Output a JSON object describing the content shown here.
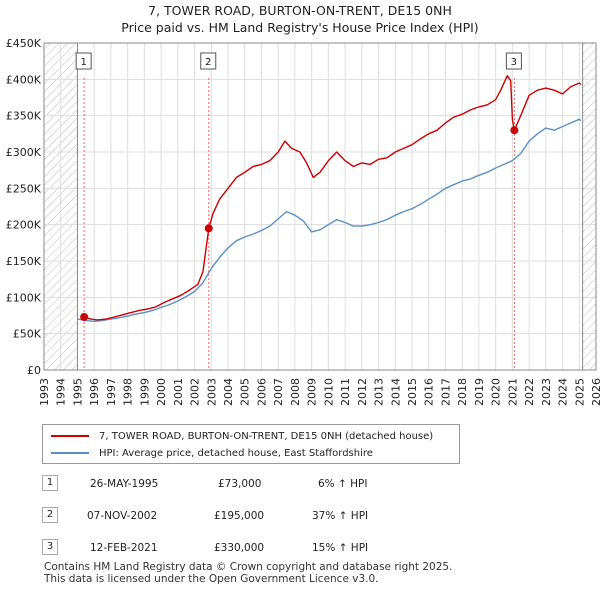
{
  "title": {
    "line1": "7, TOWER ROAD, BURTON-ON-TRENT, DE15 0NH",
    "line2": "Price paid vs. HM Land Registry's House Price Index (HPI)"
  },
  "chart_data": {
    "type": "line",
    "title": "7, TOWER ROAD, BURTON-ON-TRENT, DE15 0NH — Price paid vs. HM Land Registry's House Price Index (HPI)",
    "xlim": [
      1993,
      2026
    ],
    "ylim": [
      0,
      450000
    ],
    "x_ticks": [
      "1993",
      "1994",
      "1995",
      "1996",
      "1997",
      "1998",
      "1999",
      "2000",
      "2001",
      "2002",
      "2003",
      "2004",
      "2005",
      "2006",
      "2007",
      "2008",
      "2009",
      "2010",
      "2011",
      "2012",
      "2013",
      "2014",
      "2015",
      "2016",
      "2017",
      "2018",
      "2019",
      "2020",
      "2021",
      "2022",
      "2023",
      "2024",
      "2025",
      "2026"
    ],
    "y_ticks": [
      {
        "value": 0,
        "label": "£0"
      },
      {
        "value": 50000,
        "label": "£50K"
      },
      {
        "value": 100000,
        "label": "£100K"
      },
      {
        "value": 150000,
        "label": "£150K"
      },
      {
        "value": 200000,
        "label": "£200K"
      },
      {
        "value": 250000,
        "label": "£250K"
      },
      {
        "value": 300000,
        "label": "£300K"
      },
      {
        "value": 350000,
        "label": "£350K"
      },
      {
        "value": 400000,
        "label": "£400K"
      },
      {
        "value": 450000,
        "label": "£450K"
      }
    ],
    "hatched_ranges": [
      [
        1993,
        1995.0
      ],
      [
        2025.2,
        2026
      ]
    ],
    "series": [
      {
        "name": "7, TOWER ROAD, BURTON-ON-TRENT, DE15 0NH (detached house)",
        "color": "#cc0000",
        "points": [
          [
            1995.4,
            73000
          ],
          [
            1995.8,
            70000
          ],
          [
            1996.2,
            69000
          ],
          [
            1996.7,
            70000
          ],
          [
            1997.2,
            73000
          ],
          [
            1997.7,
            76000
          ],
          [
            1998.2,
            79000
          ],
          [
            1998.7,
            82000
          ],
          [
            1999.2,
            84000
          ],
          [
            1999.7,
            87000
          ],
          [
            2000.2,
            93000
          ],
          [
            2000.7,
            98000
          ],
          [
            2001.2,
            103000
          ],
          [
            2001.7,
            110000
          ],
          [
            2002.2,
            118000
          ],
          [
            2002.5,
            135000
          ],
          [
            2002.85,
            195000
          ],
          [
            2003.1,
            215000
          ],
          [
            2003.5,
            235000
          ],
          [
            2004.0,
            250000
          ],
          [
            2004.5,
            265000
          ],
          [
            2005.0,
            272000
          ],
          [
            2005.5,
            280000
          ],
          [
            2006.0,
            283000
          ],
          [
            2006.5,
            288000
          ],
          [
            2007.0,
            300000
          ],
          [
            2007.4,
            315000
          ],
          [
            2007.8,
            305000
          ],
          [
            2008.3,
            300000
          ],
          [
            2008.7,
            285000
          ],
          [
            2009.1,
            265000
          ],
          [
            2009.5,
            272000
          ],
          [
            2010.0,
            288000
          ],
          [
            2010.5,
            300000
          ],
          [
            2011.0,
            288000
          ],
          [
            2011.5,
            280000
          ],
          [
            2012.0,
            285000
          ],
          [
            2012.5,
            283000
          ],
          [
            2013.0,
            290000
          ],
          [
            2013.5,
            292000
          ],
          [
            2014.0,
            300000
          ],
          [
            2014.5,
            305000
          ],
          [
            2015.0,
            310000
          ],
          [
            2015.5,
            318000
          ],
          [
            2016.0,
            325000
          ],
          [
            2016.5,
            330000
          ],
          [
            2017.0,
            340000
          ],
          [
            2017.5,
            348000
          ],
          [
            2018.0,
            352000
          ],
          [
            2018.5,
            358000
          ],
          [
            2019.0,
            362000
          ],
          [
            2019.5,
            365000
          ],
          [
            2020.0,
            372000
          ],
          [
            2020.3,
            385000
          ],
          [
            2020.7,
            405000
          ],
          [
            2020.9,
            398000
          ],
          [
            2021.0,
            345000
          ],
          [
            2021.12,
            330000
          ],
          [
            2021.5,
            350000
          ],
          [
            2022.0,
            378000
          ],
          [
            2022.5,
            385000
          ],
          [
            2023.0,
            388000
          ],
          [
            2023.5,
            385000
          ],
          [
            2024.0,
            380000
          ],
          [
            2024.5,
            390000
          ],
          [
            2025.0,
            395000
          ],
          [
            2025.1,
            393000
          ]
        ]
      },
      {
        "name": "HPI: Average price, detached house, East Staffordshire",
        "color": "#5b8fc7",
        "points": [
          [
            1995.0,
            70000
          ],
          [
            1995.5,
            68000
          ],
          [
            1996.0,
            67000
          ],
          [
            1996.5,
            68000
          ],
          [
            1997.0,
            70000
          ],
          [
            1997.5,
            72000
          ],
          [
            1998.0,
            74000
          ],
          [
            1998.5,
            77000
          ],
          [
            1999.0,
            79000
          ],
          [
            1999.5,
            82000
          ],
          [
            2000.0,
            86000
          ],
          [
            2000.5,
            90000
          ],
          [
            2001.0,
            95000
          ],
          [
            2001.5,
            101000
          ],
          [
            2002.0,
            108000
          ],
          [
            2002.5,
            120000
          ],
          [
            2003.0,
            140000
          ],
          [
            2003.5,
            155000
          ],
          [
            2004.0,
            168000
          ],
          [
            2004.5,
            178000
          ],
          [
            2005.0,
            183000
          ],
          [
            2005.5,
            187000
          ],
          [
            2006.0,
            192000
          ],
          [
            2006.5,
            198000
          ],
          [
            2007.0,
            208000
          ],
          [
            2007.5,
            218000
          ],
          [
            2008.0,
            213000
          ],
          [
            2008.5,
            205000
          ],
          [
            2009.0,
            190000
          ],
          [
            2009.5,
            193000
          ],
          [
            2010.0,
            200000
          ],
          [
            2010.5,
            207000
          ],
          [
            2011.0,
            203000
          ],
          [
            2011.5,
            198000
          ],
          [
            2012.0,
            198000
          ],
          [
            2012.5,
            200000
          ],
          [
            2013.0,
            203000
          ],
          [
            2013.5,
            207000
          ],
          [
            2014.0,
            213000
          ],
          [
            2014.5,
            218000
          ],
          [
            2015.0,
            222000
          ],
          [
            2015.5,
            228000
          ],
          [
            2016.0,
            235000
          ],
          [
            2016.5,
            242000
          ],
          [
            2017.0,
            250000
          ],
          [
            2017.5,
            255000
          ],
          [
            2018.0,
            260000
          ],
          [
            2018.5,
            263000
          ],
          [
            2019.0,
            268000
          ],
          [
            2019.5,
            272000
          ],
          [
            2020.0,
            278000
          ],
          [
            2020.5,
            283000
          ],
          [
            2021.0,
            288000
          ],
          [
            2021.5,
            298000
          ],
          [
            2022.0,
            315000
          ],
          [
            2022.5,
            325000
          ],
          [
            2023.0,
            333000
          ],
          [
            2023.5,
            330000
          ],
          [
            2024.0,
            335000
          ],
          [
            2024.5,
            340000
          ],
          [
            2025.0,
            345000
          ],
          [
            2025.1,
            343000
          ]
        ]
      }
    ],
    "markers": [
      {
        "label": "1",
        "x": 1995.4,
        "y": 73000
      },
      {
        "label": "2",
        "x": 2002.85,
        "y": 195000
      },
      {
        "label": "3",
        "x": 2021.12,
        "y": 330000
      }
    ]
  },
  "legend": {
    "price_paid": "7, TOWER ROAD, BURTON-ON-TRENT, DE15 0NH (detached house)",
    "hpi": "HPI: Average price, detached house, East Staffordshire"
  },
  "transactions": [
    {
      "num": "1",
      "date": "26-MAY-1995",
      "price": "£73,000",
      "hpi": "6% ↑ HPI"
    },
    {
      "num": "2",
      "date": "07-NOV-2002",
      "price": "£195,000",
      "hpi": "37% ↑ HPI"
    },
    {
      "num": "3",
      "date": "12-FEB-2021",
      "price": "£330,000",
      "hpi": "15% ↑ HPI"
    }
  ],
  "footer": {
    "line1": "Contains HM Land Registry data © Crown copyright and database right 2025.",
    "line2": "This data is licensed under the Open Government Licence v3.0."
  },
  "colors": {
    "price_line": "#cc0000",
    "hpi_line": "#5b8fc7",
    "grid": "#dddddd",
    "hatch": "#bbbbbb",
    "marker_box_border": "#555555"
  }
}
